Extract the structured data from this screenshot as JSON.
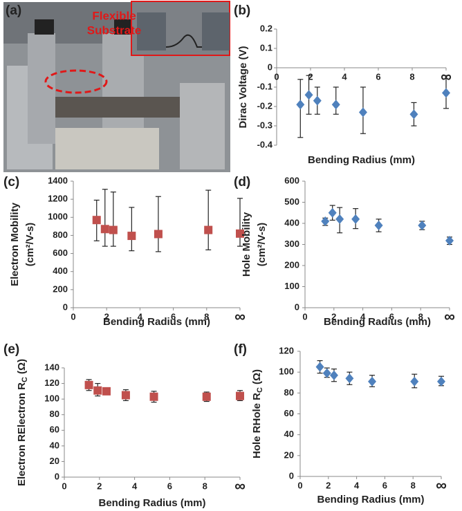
{
  "photo": {
    "label": "(a)",
    "annotation_lines": [
      "Flexible",
      "Substrate"
    ]
  },
  "chart_data": [
    {
      "type": "scatter",
      "label": "(b)",
      "ylabel": [
        "Dirac Voltage (V)"
      ],
      "xlabel": "Bending Radius (mm)",
      "x": [
        1.4,
        1.9,
        2.4,
        3.5,
        5.1,
        8.1,
        10
      ],
      "series": [
        {
          "color": "#4f81bd",
          "marker": "diamond",
          "values": [
            -0.19,
            -0.14,
            -0.17,
            -0.19,
            -0.23,
            -0.24,
            -0.13
          ],
          "lower": [
            -0.36,
            -0.24,
            -0.24,
            -0.24,
            -0.34,
            -0.3,
            -0.21
          ],
          "upper": [
            -0.06,
            -0.04,
            -0.1,
            -0.1,
            -0.1,
            -0.18,
            -0.04
          ]
        }
      ],
      "xlim": [
        0,
        10
      ],
      "xticks": [
        0,
        2,
        4,
        6,
        8,
        {
          "value": 10,
          "label": "∞"
        }
      ],
      "ylim": [
        -0.4,
        0.2
      ],
      "yticks": [
        -0.4,
        -0.3,
        -0.2,
        -0.1,
        0,
        0.1,
        0.2
      ]
    },
    {
      "type": "scatter",
      "label": "(c)",
      "ylabel": [
        "Electron Mobility",
        "(cm²/V-s)"
      ],
      "xlabel": "Bending Radius (mm)",
      "x": [
        1.4,
        1.9,
        2.4,
        3.5,
        5.1,
        8.1,
        10
      ],
      "series": [
        {
          "color": "#c0504d",
          "marker": "square",
          "values": [
            970,
            870,
            860,
            795,
            815,
            860,
            820
          ],
          "lower": [
            740,
            680,
            680,
            630,
            620,
            640,
            680
          ],
          "upper": [
            1190,
            1310,
            1280,
            1110,
            1230,
            1300,
            1210
          ]
        }
      ],
      "xlim": [
        0,
        10
      ],
      "xticks": [
        0,
        2,
        4,
        6,
        8,
        {
          "value": 10,
          "label": "∞"
        }
      ],
      "ylim": [
        0,
        1400
      ],
      "yticks": [
        0,
        200,
        400,
        600,
        800,
        1000,
        1200,
        1400
      ]
    },
    {
      "type": "scatter",
      "label": "(d)",
      "ylabel": [
        "Hole Mobility",
        "(cm²/V-s)"
      ],
      "xlabel": "Bending Radius (mm)",
      "x": [
        1.4,
        1.9,
        2.4,
        3.5,
        5.1,
        8.1,
        10
      ],
      "series": [
        {
          "color": "#4f81bd",
          "marker": "diamond",
          "values": [
            410,
            450,
            420,
            420,
            390,
            390,
            318
          ],
          "lower": [
            390,
            415,
            355,
            375,
            360,
            370,
            300
          ],
          "upper": [
            425,
            485,
            475,
            470,
            420,
            410,
            335
          ]
        }
      ],
      "xlim": [
        0,
        10
      ],
      "xticks": [
        0,
        2,
        4,
        6,
        8,
        {
          "value": 10,
          "label": "∞"
        }
      ],
      "ylim": [
        0,
        600
      ],
      "yticks": [
        0,
        100,
        200,
        300,
        400,
        500,
        600
      ]
    },
    {
      "type": "scatter",
      "label": "(e)",
      "ylabel": [
        "Electron R"
      ],
      "ylabel_sub": "C",
      "ylabel_unit": "(Ω)",
      "xlabel": "Bending Radius (mm)",
      "x": [
        1.4,
        1.9,
        2.4,
        3.5,
        5.1,
        8.1,
        10
      ],
      "series": [
        {
          "color": "#c0504d",
          "marker": "square",
          "values": [
            118,
            111,
            110,
            105,
            103,
            103,
            104
          ],
          "lower": [
            111,
            104,
            106,
            98,
            96,
            97,
            98
          ],
          "upper": [
            125,
            120,
            113,
            112,
            110,
            109,
            111
          ]
        }
      ],
      "xlim": [
        0,
        10
      ],
      "xticks": [
        0,
        2,
        4,
        6,
        8,
        {
          "value": 10,
          "label": "∞"
        }
      ],
      "ylim": [
        0,
        140
      ],
      "yticks": [
        0,
        20,
        40,
        60,
        80,
        100,
        120,
        140
      ]
    },
    {
      "type": "scatter",
      "label": "(f)",
      "ylabel": [
        "Hole R"
      ],
      "ylabel_sub": "C",
      "ylabel_unit": "(Ω)",
      "xlabel": "Bending Radius (mm)",
      "x": [
        1.4,
        1.9,
        2.4,
        3.5,
        5.1,
        8.1,
        10
      ],
      "series": [
        {
          "color": "#4f81bd",
          "marker": "diamond",
          "values": [
            105,
            99,
            97,
            94,
            91,
            91,
            91
          ],
          "lower": [
            99,
            95,
            91,
            88,
            86,
            85,
            87
          ],
          "upper": [
            111,
            104,
            103,
            100,
            97,
            98,
            96
          ]
        }
      ],
      "xlim": [
        0,
        10
      ],
      "xticks": [
        0,
        2,
        4,
        6,
        8,
        {
          "value": 10,
          "label": "∞"
        }
      ],
      "ylim": [
        0,
        120
      ],
      "yticks": [
        0,
        20,
        40,
        60,
        80,
        100,
        120
      ]
    }
  ]
}
